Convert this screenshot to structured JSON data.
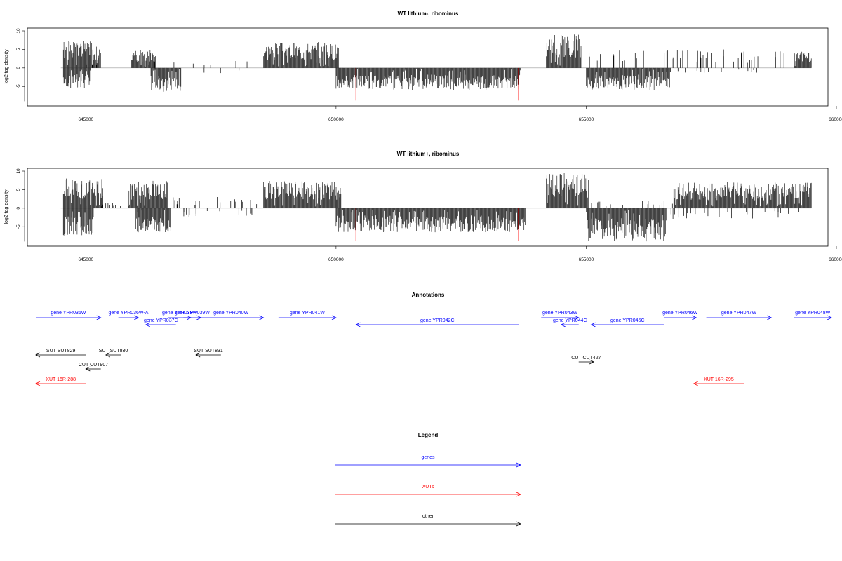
{
  "chart_data": [
    {
      "type": "bar",
      "title": "WT lithium-, ribominus",
      "ylabel": "log2 tag density",
      "xlim": [
        644000,
        660000
      ],
      "ylim": [
        -9.5,
        10
      ],
      "x_ticks": [
        645000,
        650000,
        655000,
        660000
      ],
      "y_ticks": [
        -5,
        0,
        5,
        10
      ],
      "plus_strand_blocks": [
        {
          "start": 644550,
          "end": 645300,
          "max": 7.2,
          "seed": 1
        },
        {
          "start": 645900,
          "end": 646400,
          "max": 5.0,
          "seed": 2
        },
        {
          "start": 648550,
          "end": 650050,
          "max": 7.0,
          "seed": 3
        },
        {
          "start": 654200,
          "end": 654900,
          "max": 9.3,
          "seed": 4
        },
        {
          "start": 659150,
          "end": 659500,
          "max": 4.5,
          "seed": 5
        }
      ],
      "plus_strand_sparse": [
        {
          "start": 645000,
          "end": 645300,
          "max": 1.5,
          "count": 4,
          "seed": 6
        },
        {
          "start": 646200,
          "end": 648500,
          "max": 2.5,
          "count": 8,
          "seed": 7
        },
        {
          "start": 655000,
          "end": 659100,
          "max": 5.0,
          "count": 55,
          "seed": 8
        }
      ],
      "minus_strand_blocks": [
        {
          "start": 644550,
          "end": 645100,
          "max": -5.5,
          "seed": 9
        },
        {
          "start": 646300,
          "end": 646900,
          "max": -6.5,
          "seed": 10
        },
        {
          "start": 650000,
          "end": 653700,
          "max": -6.0,
          "seed": 11
        },
        {
          "start": 655000,
          "end": 656700,
          "max": -6.0,
          "seed": 12
        }
      ],
      "minus_strand_sparse": [
        {
          "start": 647000,
          "end": 648200,
          "max": -1.5,
          "count": 5,
          "seed": 13
        },
        {
          "start": 656700,
          "end": 658500,
          "max": -1.5,
          "count": 12,
          "seed": 14
        }
      ],
      "highlight_bars": [
        {
          "x": 650400,
          "y": -8.8,
          "color": "#ff0000"
        },
        {
          "x": 653650,
          "y": -8.8,
          "color": "#ff0000"
        }
      ]
    },
    {
      "type": "bar",
      "title": "WT lithium+, ribominus",
      "ylabel": "log2 tag density",
      "xlim": [
        644000,
        660000
      ],
      "ylim": [
        -9.5,
        10
      ],
      "x_ticks": [
        645000,
        650000,
        655000,
        660000
      ],
      "y_ticks": [
        -5,
        0,
        5,
        10
      ],
      "plus_strand_blocks": [
        {
          "start": 644550,
          "end": 645350,
          "max": 8.0,
          "seed": 21
        },
        {
          "start": 645850,
          "end": 646650,
          "max": 7.5,
          "seed": 22
        },
        {
          "start": 648550,
          "end": 650100,
          "max": 7.5,
          "seed": 23
        },
        {
          "start": 654200,
          "end": 655050,
          "max": 9.5,
          "seed": 24
        },
        {
          "start": 656750,
          "end": 659500,
          "max": 7.0,
          "seed": 25
        }
      ],
      "plus_strand_sparse": [
        {
          "start": 645300,
          "end": 645850,
          "max": 1.5,
          "count": 10,
          "seed": 26
        },
        {
          "start": 646650,
          "end": 648550,
          "max": 3.0,
          "count": 20,
          "seed": 27
        },
        {
          "start": 655050,
          "end": 656750,
          "max": 2.0,
          "count": 18,
          "seed": 28
        }
      ],
      "minus_strand_blocks": [
        {
          "start": 644550,
          "end": 645150,
          "max": -7.5,
          "seed": 29
        },
        {
          "start": 646000,
          "end": 646700,
          "max": -6.5,
          "seed": 30
        },
        {
          "start": 650000,
          "end": 653800,
          "max": -6.5,
          "seed": 31
        },
        {
          "start": 655000,
          "end": 656600,
          "max": -9.0,
          "seed": 32
        }
      ],
      "minus_strand_sparse": [
        {
          "start": 646700,
          "end": 648400,
          "max": -2.5,
          "count": 15,
          "seed": 33
        },
        {
          "start": 656600,
          "end": 659300,
          "max": -3.0,
          "count": 30,
          "seed": 34
        }
      ],
      "highlight_bars": [
        {
          "x": 650400,
          "y": -8.8,
          "color": "#ff0000"
        },
        {
          "x": 653650,
          "y": -8.8,
          "color": "#ff0000"
        }
      ]
    }
  ],
  "annotations": {
    "title": "Annotations",
    "xlim": [
      644000,
      660000
    ],
    "features": [
      {
        "label": "gene YPR036W",
        "start": 644000,
        "end": 645300,
        "dir": "right",
        "row": 0,
        "color": "#0000ff"
      },
      {
        "label": "gene YPR036W-A",
        "start": 645650,
        "end": 646050,
        "dir": "right",
        "row": 0,
        "color": "#0000ff"
      },
      {
        "label": "gene YPR037C",
        "start": 646200,
        "end": 646800,
        "dir": "left",
        "row": 1,
        "color": "#0000ff"
      },
      {
        "label": "gene YPR038W",
        "start": 646650,
        "end": 647100,
        "dir": "right",
        "row": 0,
        "color": "#0000ff"
      },
      {
        "label": "gene YPR039W",
        "start": 646950,
        "end": 647300,
        "dir": "right",
        "row": 0,
        "color": "#0000ff"
      },
      {
        "label": "gene YPR040W",
        "start": 647250,
        "end": 648550,
        "dir": "right",
        "row": 0,
        "color": "#0000ff"
      },
      {
        "label": "gene YPR041W",
        "start": 648850,
        "end": 650000,
        "dir": "right",
        "row": 0,
        "color": "#0000ff"
      },
      {
        "label": "gene YPR042C",
        "start": 650400,
        "end": 653650,
        "dir": "left",
        "row": 1,
        "color": "#0000ff"
      },
      {
        "label": "gene YPR043W",
        "start": 654100,
        "end": 654850,
        "dir": "right",
        "row": 0,
        "color": "#0000ff"
      },
      {
        "label": "gene YPR044C",
        "start": 654500,
        "end": 654850,
        "dir": "left",
        "row": 1,
        "color": "#0000ff"
      },
      {
        "label": "gene YPR045C",
        "start": 655100,
        "end": 656550,
        "dir": "left",
        "row": 1,
        "color": "#0000ff"
      },
      {
        "label": "gene YPR046W",
        "start": 656550,
        "end": 657200,
        "dir": "right",
        "row": 0,
        "color": "#0000ff"
      },
      {
        "label": "gene YPR047W",
        "start": 657400,
        "end": 658700,
        "dir": "right",
        "row": 0,
        "color": "#0000ff"
      },
      {
        "label": "gene YPR048W",
        "start": 659150,
        "end": 660200,
        "dir": "right",
        "row": 0,
        "color": "#0000ff"
      },
      {
        "label": "SUT SUT829",
        "start": 644000,
        "end": 645000,
        "dir": "left",
        "row": 2,
        "color": "#000000"
      },
      {
        "label": "SUT SUT830",
        "start": 645400,
        "end": 645700,
        "dir": "left",
        "row": 2,
        "color": "#000000"
      },
      {
        "label": "SUT SUT831",
        "start": 647200,
        "end": 647700,
        "dir": "left",
        "row": 2,
        "color": "#000000"
      },
      {
        "label": "CUT CUT907",
        "start": 645000,
        "end": 645300,
        "dir": "left",
        "row": 3,
        "color": "#000000"
      },
      {
        "label": "CUT CUT427",
        "start": 654850,
        "end": 655150,
        "dir": "right",
        "row": 4,
        "color": "#000000"
      },
      {
        "label": "XUT 16R-288",
        "start": 644000,
        "end": 645000,
        "dir": "left",
        "row": 5,
        "color": "#ff0000"
      },
      {
        "label": "XUT 16R-295",
        "start": 657150,
        "end": 658150,
        "dir": "left",
        "row": 5,
        "color": "#ff0000"
      }
    ]
  },
  "legend": {
    "title": "Legend",
    "items": [
      {
        "label": "genes",
        "color": "#0000ff"
      },
      {
        "label": "XUTs",
        "color": "#ff0000"
      },
      {
        "label": "other",
        "color": "#000000"
      }
    ]
  }
}
